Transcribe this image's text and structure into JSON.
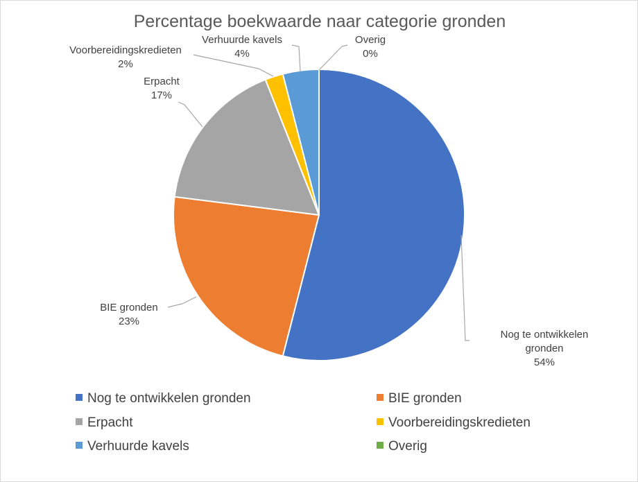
{
  "chart_data": {
    "type": "pie",
    "title": "Percentage boekwaarde naar categorie gronden",
    "legend_position": "bottom",
    "series": [
      {
        "name": "Nog te ontwikkelen gronden",
        "value": 54,
        "label_lines": [
          "Nog te ontwikkelen",
          "gronden",
          "54%"
        ],
        "color": "#4472C4"
      },
      {
        "name": "BIE gronden",
        "value": 23,
        "label_lines": [
          "BIE gronden",
          "23%"
        ],
        "color": "#ED7D31"
      },
      {
        "name": "Erpacht",
        "value": 17,
        "label_lines": [
          "Erpacht",
          "17%"
        ],
        "color": "#A5A5A5"
      },
      {
        "name": "Voorbereidingskredieten",
        "value": 2,
        "label_lines": [
          "Voorbereidingskredieten",
          "2%"
        ],
        "color": "#FFC000"
      },
      {
        "name": "Verhuurde kavels",
        "value": 4,
        "label_lines": [
          "Verhuurde kavels",
          "4%"
        ],
        "color": "#5B9BD5"
      },
      {
        "name": "Overig",
        "value": 0,
        "label_lines": [
          "Overig",
          "0%"
        ],
        "color": "#70AD47"
      }
    ]
  }
}
